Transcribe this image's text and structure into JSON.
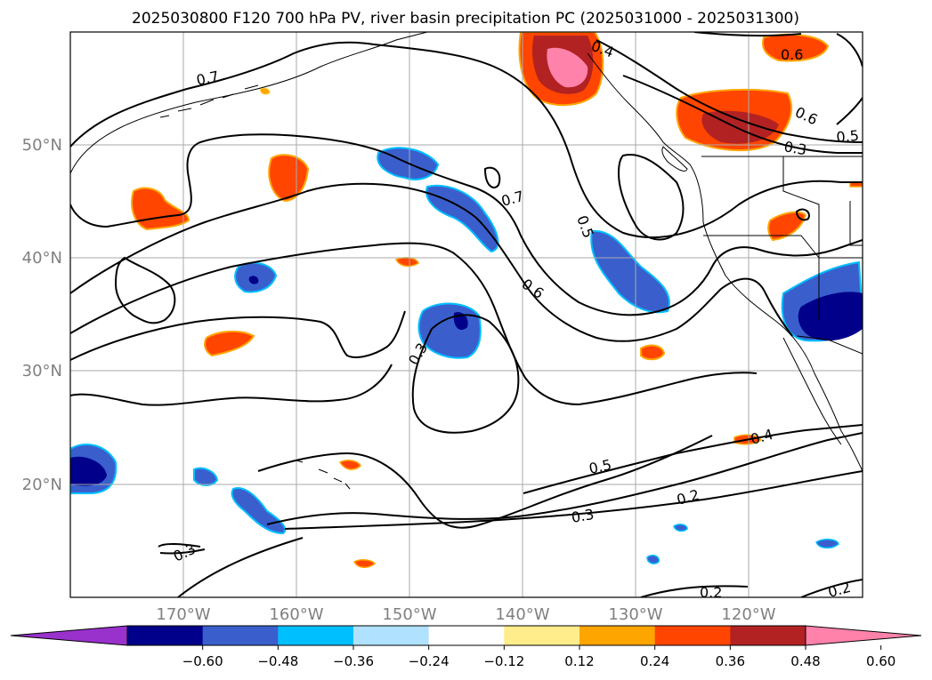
{
  "title": "2025030800 F120 700 hPa PV, river basin precipitation PC (2025031000 - 2025031300)",
  "map": {
    "lon_range": [
      -180,
      -110
    ],
    "lat_range": [
      10,
      60
    ],
    "lon_ticks": [
      "170°W",
      "160°W",
      "150°W",
      "140°W",
      "130°W",
      "120°W"
    ],
    "lat_ticks": [
      "50°N",
      "40°N",
      "30°N",
      "20°N"
    ],
    "grid": true,
    "contour_labels": [
      "0.7",
      "0.7",
      "0.6",
      "0.5",
      "0.3",
      "0.5",
      "0.3",
      "0.2",
      "0.4",
      "0.3",
      "0.6",
      "0.6",
      "0.5",
      "0.4",
      "0.3",
      "0.2",
      "0.2"
    ]
  },
  "colorbar": {
    "ticks": [
      "−0.60",
      "−0.48",
      "−0.36",
      "−0.24",
      "−0.12",
      "0.12",
      "0.24",
      "0.36",
      "0.48",
      "0.60"
    ],
    "colors": [
      "#9932cc",
      "#00008b",
      "#3a5fcd",
      "#00bfff",
      "#b0e2ff",
      "#ffffff",
      "#ffec8b",
      "#ffa500",
      "#ff4500",
      "#b22222",
      "#ff82ab"
    ]
  },
  "chart_data": {
    "type": "contour-map",
    "field": "700 hPa PV",
    "shading": "river basin precipitation PC",
    "levels": [
      -0.6,
      -0.48,
      -0.36,
      -0.24,
      -0.12,
      0.12,
      0.24,
      0.36,
      0.48,
      0.6
    ],
    "extend": "both"
  }
}
